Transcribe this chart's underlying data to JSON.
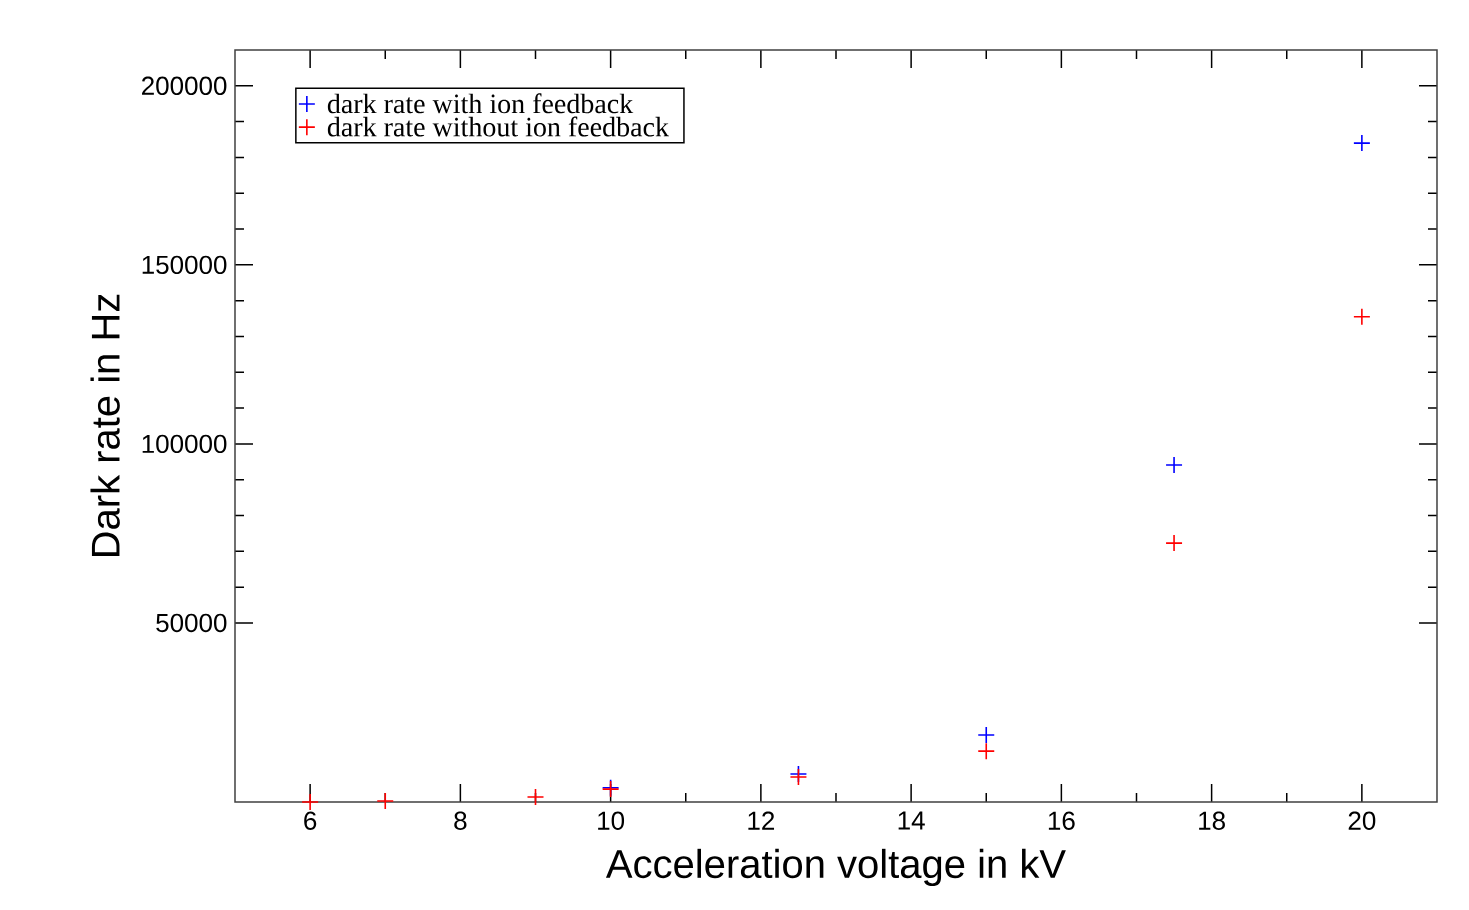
{
  "chart_data": {
    "type": "scatter",
    "xlabel": "Acceleration voltage in kV",
    "ylabel": "Dark rate in Hz",
    "x": [
      6,
      7,
      9,
      10,
      12.5,
      15,
      17.5,
      20
    ],
    "series": [
      {
        "name": "dark rate with ion feedback",
        "color": "#0000ff",
        "values": [
          null,
          null,
          null,
          4000,
          7800,
          18700,
          94100,
          184000
        ]
      },
      {
        "name": "dark rate without ion feedback",
        "color": "#ff0000",
        "values": [
          0,
          300,
          1400,
          3600,
          7000,
          14200,
          72300,
          135500
        ]
      }
    ],
    "xlim": [
      5,
      21
    ],
    "xticks": [
      6,
      8,
      10,
      12,
      14,
      16,
      18,
      20
    ],
    "ylim": [
      0,
      210000
    ],
    "yticks": [
      50000,
      100000,
      150000,
      200000
    ],
    "marker": "cross",
    "legend": "top left",
    "grid": false
  }
}
